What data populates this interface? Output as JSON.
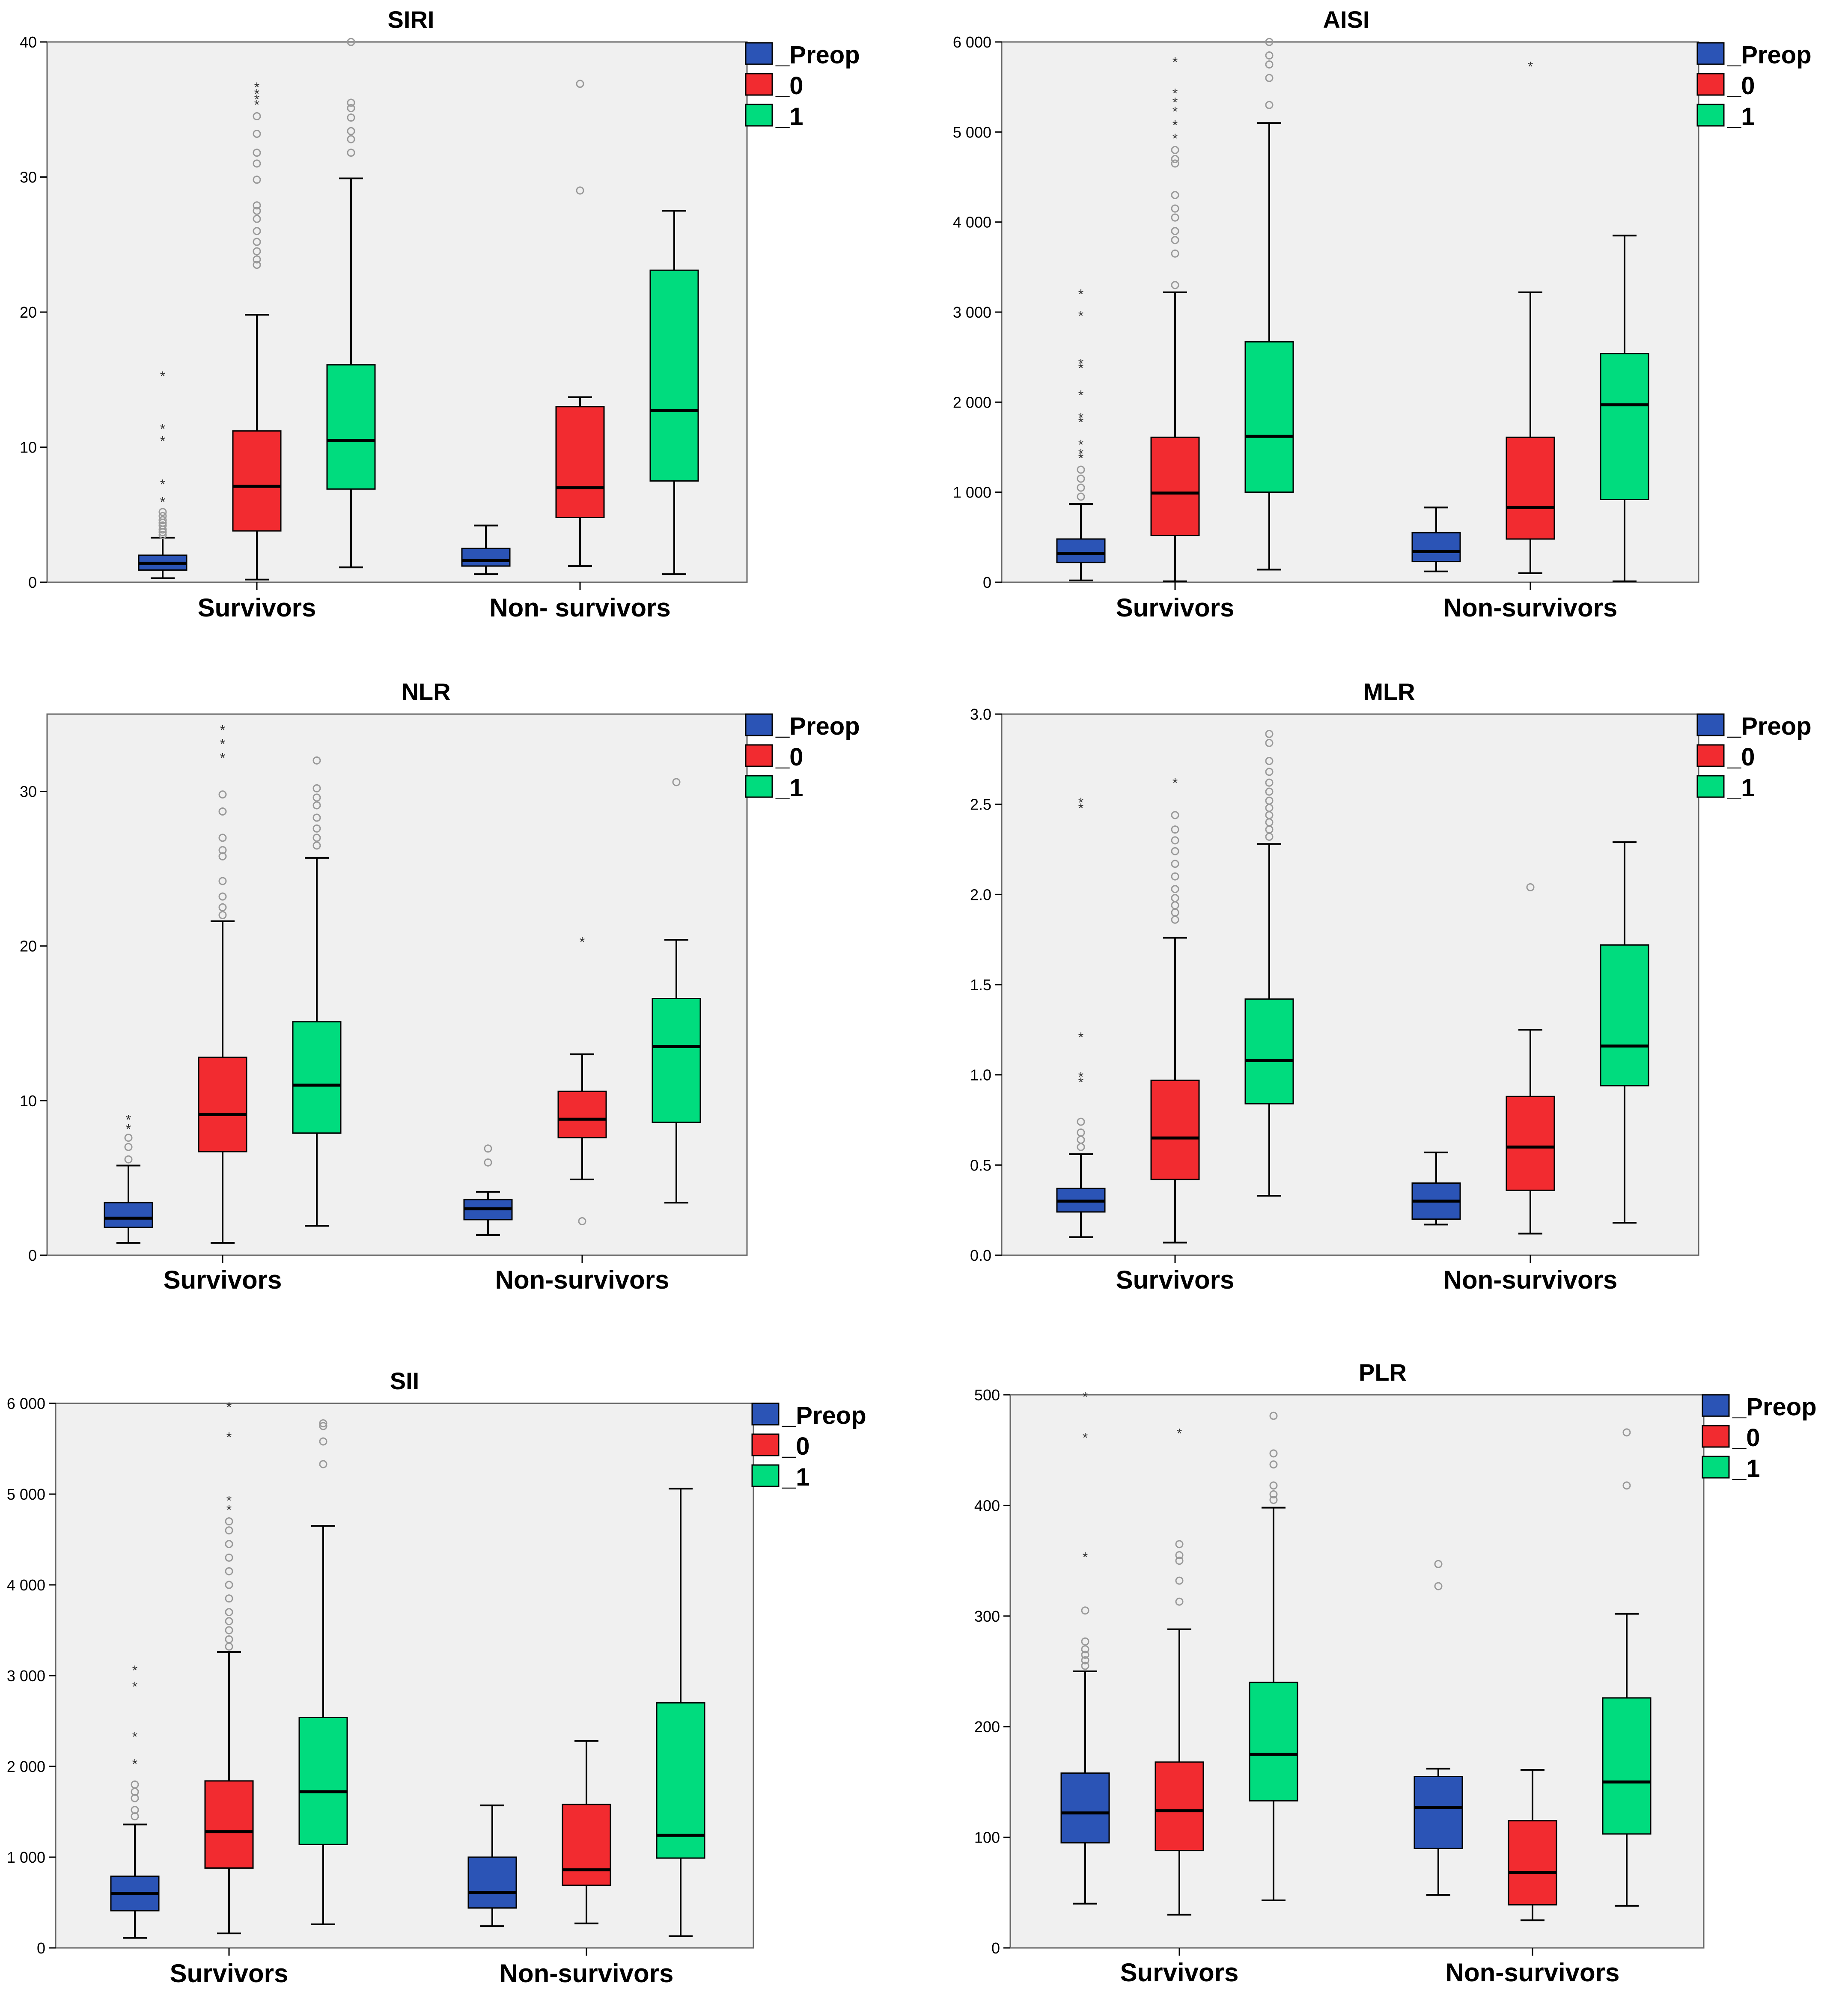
{
  "colors": {
    "preop": "#2b54b6",
    "day0": "#f22b30",
    "day1": "#00dc7e",
    "plot_bg": "#f0f0f0",
    "frame": "#666666",
    "outlier": "#999999",
    "text": "#000000"
  },
  "chart_data": [
    {
      "type": "boxplot",
      "title": "SIRI",
      "categories": [
        "Survivors",
        "Non- survivors"
      ],
      "legend": [
        "_Preop",
        "_0",
        "_1"
      ],
      "legend_position": "right",
      "ylim": [
        0,
        40
      ],
      "yticks": [
        0,
        10,
        20,
        30,
        40
      ],
      "ytick_labels": [
        "0",
        "10",
        "20",
        "30",
        "40"
      ],
      "series": [
        {
          "name": "_Preop",
          "boxes": [
            {
              "min": 0.3,
              "q1": 0.9,
              "median": 1.4,
              "q3": 2.0,
              "max": 3.3,
              "outliers": [
                3.5,
                3.7,
                3.9,
                4.2,
                4.4,
                4.6,
                4.9,
                5.2
              ],
              "extremes": [
                6.1,
                7.4,
                10.6,
                11.5,
                15.4
              ]
            },
            {
              "min": 0.6,
              "q1": 1.2,
              "median": 1.6,
              "q3": 2.5,
              "max": 4.2,
              "outliers": [],
              "extremes": []
            }
          ]
        },
        {
          "name": "_0",
          "boxes": [
            {
              "min": 0.2,
              "q1": 3.8,
              "median": 7.1,
              "q3": 11.2,
              "max": 19.8,
              "outliers": [
                23.5,
                23.9,
                24.5,
                25.2,
                26.0,
                26.9,
                27.5,
                27.9,
                29.8,
                31.0,
                31.8,
                33.2,
                34.5
              ],
              "extremes": [
                35.5,
                35.9,
                36.3,
                36.8
              ]
            },
            {
              "min": 1.2,
              "q1": 4.8,
              "median": 7.0,
              "q3": 13.0,
              "max": 13.7,
              "outliers": [
                29.0,
                36.9
              ],
              "extremes": []
            }
          ]
        },
        {
          "name": "_1",
          "boxes": [
            {
              "min": 1.1,
              "q1": 6.9,
              "median": 10.5,
              "q3": 16.1,
              "max": 29.9,
              "outliers": [
                31.8,
                32.8,
                33.4,
                34.4,
                35.1,
                35.5,
                40.0
              ],
              "extremes": []
            },
            {
              "min": 0.6,
              "q1": 7.5,
              "median": 12.7,
              "q3": 23.1,
              "max": 27.5,
              "outliers": [],
              "extremes": []
            }
          ]
        }
      ]
    },
    {
      "type": "boxplot",
      "title": "AISI",
      "categories": [
        "Survivors",
        "Non-survivors"
      ],
      "legend": [
        "_Preop",
        "_0",
        "_1"
      ],
      "legend_position": "right",
      "ylim": [
        0,
        6000
      ],
      "yticks": [
        0,
        1000,
        2000,
        3000,
        4000,
        5000,
        6000
      ],
      "ytick_labels": [
        "0",
        "1 000",
        "2 000",
        "3 000",
        "4 000",
        "5 000",
        "6 000"
      ],
      "series": [
        {
          "name": "_Preop",
          "boxes": [
            {
              "min": 20,
              "q1": 220,
              "median": 320,
              "q3": 480,
              "max": 870,
              "outliers": [
                950,
                1050,
                1150,
                1250
              ],
              "extremes": [
                1400,
                1450,
                1550,
                1800,
                1850,
                2100,
                2400,
                2450,
                2980,
                3220
              ]
            },
            {
              "min": 120,
              "q1": 230,
              "median": 340,
              "q3": 550,
              "max": 830,
              "outliers": [],
              "extremes": []
            }
          ]
        },
        {
          "name": "_0",
          "boxes": [
            {
              "min": 10,
              "q1": 520,
              "median": 990,
              "q3": 1610,
              "max": 3220,
              "outliers": [
                3300,
                3650,
                3800,
                3900,
                4050,
                4150,
                4300,
                4650,
                4700,
                4800
              ],
              "extremes": [
                4950,
                5100,
                5250,
                5350,
                5450,
                5800
              ]
            },
            {
              "min": 100,
              "q1": 480,
              "median": 830,
              "q3": 1610,
              "max": 3220,
              "outliers": [],
              "extremes": [
                5750
              ]
            }
          ]
        },
        {
          "name": "_1",
          "boxes": [
            {
              "min": 140,
              "q1": 1000,
              "median": 1620,
              "q3": 2670,
              "max": 5100,
              "outliers": [
                5300,
                5600,
                5750,
                5850,
                6000
              ],
              "extremes": []
            },
            {
              "min": 10,
              "q1": 920,
              "median": 1970,
              "q3": 2540,
              "max": 3850,
              "outliers": [],
              "extremes": []
            }
          ]
        }
      ]
    },
    {
      "type": "boxplot",
      "title": "NLR",
      "categories": [
        "Survivors",
        "Non-survivors"
      ],
      "legend": [
        "_Preop",
        "_0",
        "_1"
      ],
      "legend_position": "right",
      "ylim": [
        0,
        35
      ],
      "yticks": [
        0,
        10,
        20,
        30
      ],
      "ytick_labels": [
        "0",
        "10",
        "20",
        "30"
      ],
      "series": [
        {
          "name": "_Preop",
          "boxes": [
            {
              "min": 0.8,
              "q1": 1.8,
              "median": 2.4,
              "q3": 3.4,
              "max": 5.8,
              "outliers": [
                6.2,
                7.0,
                7.6
              ],
              "extremes": [
                8.3,
                8.9
              ]
            },
            {
              "min": 1.3,
              "q1": 2.3,
              "median": 3.0,
              "q3": 3.6,
              "max": 4.1,
              "outliers": [
                6.0,
                6.9
              ],
              "extremes": []
            }
          ]
        },
        {
          "name": "_0",
          "boxes": [
            {
              "min": 0.8,
              "q1": 6.7,
              "median": 9.1,
              "q3": 12.8,
              "max": 21.6,
              "outliers": [
                22.0,
                22.5,
                23.2,
                24.2,
                25.8,
                26.2,
                27.0,
                28.7,
                29.8
              ],
              "extremes": [
                32.3,
                33.2,
                34.1
              ]
            },
            {
              "min": 4.9,
              "q1": 7.6,
              "median": 8.8,
              "q3": 10.6,
              "max": 13.0,
              "outliers": [
                2.2
              ],
              "extremes": [
                20.4
              ]
            }
          ]
        },
        {
          "name": "_1",
          "boxes": [
            {
              "min": 1.9,
              "q1": 7.9,
              "median": 11.0,
              "q3": 15.1,
              "max": 25.7,
              "outliers": [
                26.5,
                27.0,
                27.6,
                28.3,
                29.1,
                29.6,
                30.2,
                32.0
              ],
              "extremes": []
            },
            {
              "min": 3.4,
              "q1": 8.6,
              "median": 13.5,
              "q3": 16.6,
              "max": 20.4,
              "outliers": [
                30.6
              ],
              "extremes": []
            }
          ]
        }
      ]
    },
    {
      "type": "boxplot",
      "title": "MLR",
      "categories": [
        "Survivors",
        "Non-survivors"
      ],
      "legend": [
        "_Preop",
        "_0",
        "_1"
      ],
      "legend_position": "right",
      "ylim": [
        0,
        3
      ],
      "yticks": [
        0,
        0.5,
        1,
        1.5,
        2,
        2.5,
        3
      ],
      "ytick_labels": [
        "0.0",
        "0.5",
        "1.0",
        "1.5",
        "2.0",
        "2.5",
        "3.0"
      ],
      "series": [
        {
          "name": "_Preop",
          "boxes": [
            {
              "min": 0.1,
              "q1": 0.24,
              "median": 0.3,
              "q3": 0.37,
              "max": 0.56,
              "outliers": [
                0.6,
                0.64,
                0.68,
                0.74
              ],
              "extremes": [
                0.97,
                1.0,
                1.22,
                2.49,
                2.52
              ]
            },
            {
              "min": 0.17,
              "q1": 0.2,
              "median": 0.3,
              "q3": 0.4,
              "max": 0.57,
              "outliers": [],
              "extremes": []
            }
          ]
        },
        {
          "name": "_0",
          "boxes": [
            {
              "min": 0.07,
              "q1": 0.42,
              "median": 0.65,
              "q3": 0.97,
              "max": 1.76,
              "outliers": [
                1.86,
                1.9,
                1.94,
                1.98,
                2.03,
                2.1,
                2.17,
                2.24,
                2.3,
                2.36,
                2.44
              ],
              "extremes": [
                2.63
              ]
            },
            {
              "min": 0.12,
              "q1": 0.36,
              "median": 0.6,
              "q3": 0.88,
              "max": 1.25,
              "outliers": [
                2.04
              ],
              "extremes": []
            }
          ]
        },
        {
          "name": "_1",
          "boxes": [
            {
              "min": 0.33,
              "q1": 0.84,
              "median": 1.08,
              "q3": 1.42,
              "max": 2.28,
              "outliers": [
                2.32,
                2.36,
                2.4,
                2.44,
                2.48,
                2.52,
                2.57,
                2.62,
                2.68,
                2.74,
                2.84,
                2.89
              ],
              "extremes": []
            },
            {
              "min": 0.18,
              "q1": 0.94,
              "median": 1.16,
              "q3": 1.72,
              "max": 2.29,
              "outliers": [],
              "extremes": []
            }
          ]
        }
      ]
    },
    {
      "type": "boxplot",
      "title": "SII",
      "categories": [
        "Survivors",
        "Non-survivors"
      ],
      "legend": [
        "_Preop",
        "_0",
        "_1"
      ],
      "legend_position": "right",
      "ylim": [
        0,
        6000
      ],
      "yticks": [
        0,
        1000,
        2000,
        3000,
        4000,
        5000,
        6000
      ],
      "ytick_labels": [
        "0",
        "1 000",
        "2 000",
        "3 000",
        "4 000",
        "5 000",
        "6 000"
      ],
      "series": [
        {
          "name": "_Preop",
          "boxes": [
            {
              "min": 110,
              "q1": 410,
              "median": 600,
              "q3": 790,
              "max": 1360,
              "outliers": [
                1450,
                1520,
                1650,
                1720,
                1800
              ],
              "extremes": [
                2050,
                2350,
                2900,
                3080
              ]
            },
            {
              "min": 240,
              "q1": 440,
              "median": 610,
              "q3": 1000,
              "max": 1570,
              "outliers": [],
              "extremes": []
            }
          ]
        },
        {
          "name": "_0",
          "boxes": [
            {
              "min": 160,
              "q1": 880,
              "median": 1280,
              "q3": 1840,
              "max": 3260,
              "outliers": [
                3320,
                3400,
                3500,
                3600,
                3700,
                3850,
                4000,
                4150,
                4300,
                4450,
                4600,
                4700
              ],
              "extremes": [
                4850,
                4950,
                5650,
                5980
              ]
            },
            {
              "min": 270,
              "q1": 690,
              "median": 860,
              "q3": 1580,
              "max": 2280,
              "outliers": [],
              "extremes": []
            }
          ]
        },
        {
          "name": "_1",
          "boxes": [
            {
              "min": 260,
              "q1": 1140,
              "median": 1720,
              "q3": 2540,
              "max": 4650,
              "outliers": [
                5330,
                5580,
                5750,
                5780
              ],
              "extremes": []
            },
            {
              "min": 130,
              "q1": 990,
              "median": 1240,
              "q3": 2700,
              "max": 5060,
              "outliers": [],
              "extremes": []
            }
          ]
        }
      ]
    },
    {
      "type": "boxplot",
      "title": "PLR",
      "categories": [
        "Survivors",
        "Non-survivors"
      ],
      "legend": [
        "_Preop",
        "_0",
        "_1"
      ],
      "legend_position": "right",
      "ylim": [
        0,
        500
      ],
      "yticks": [
        0,
        100,
        200,
        300,
        400,
        500
      ],
      "ytick_labels": [
        "0",
        "100",
        "200",
        "300",
        "400",
        "500"
      ],
      "series": [
        {
          "name": "_Preop",
          "boxes": [
            {
              "min": 40,
              "q1": 95,
              "median": 122,
              "q3": 158,
              "max": 250,
              "outliers": [
                255,
                260,
                265,
                270,
                277,
                305
              ],
              "extremes": [
                355,
                463,
                500
              ]
            },
            {
              "min": 48,
              "q1": 90,
              "median": 127,
              "q3": 155,
              "max": 162,
              "outliers": [
                327,
                347
              ],
              "extremes": []
            }
          ]
        },
        {
          "name": "_0",
          "boxes": [
            {
              "min": 30,
              "q1": 88,
              "median": 124,
              "q3": 168,
              "max": 288,
              "outliers": [
                313,
                332,
                350,
                355,
                365
              ],
              "extremes": [
                467
              ]
            },
            {
              "min": 25,
              "q1": 39,
              "median": 68,
              "q3": 115,
              "max": 161,
              "outliers": [],
              "extremes": []
            }
          ]
        },
        {
          "name": "_1",
          "boxes": [
            {
              "min": 43,
              "q1": 133,
              "median": 175,
              "q3": 240,
              "max": 398,
              "outliers": [
                405,
                410,
                418,
                437,
                447,
                481
              ],
              "extremes": []
            },
            {
              "min": 38,
              "q1": 103,
              "median": 150,
              "q3": 226,
              "max": 302,
              "outliers": [
                418,
                466
              ],
              "extremes": []
            }
          ]
        }
      ]
    }
  ]
}
